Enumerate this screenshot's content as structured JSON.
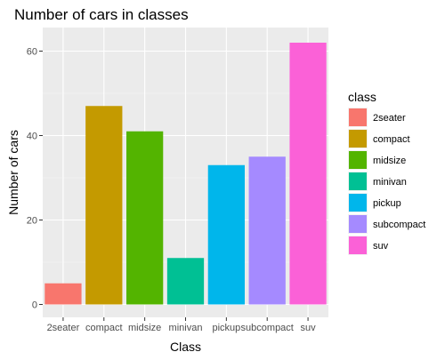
{
  "chart_data": {
    "type": "bar",
    "title": "Number of cars in classes",
    "xlabel": "Class",
    "ylabel": "Number of cars",
    "categories": [
      "2seater",
      "compact",
      "midsize",
      "minivan",
      "pickup",
      "subcompact",
      "suv"
    ],
    "values": [
      5,
      47,
      41,
      11,
      33,
      35,
      62
    ],
    "colors": [
      "#F8766D",
      "#C49A00",
      "#53B400",
      "#00C094",
      "#00B6EB",
      "#A58AFF",
      "#FB61D7"
    ],
    "ylim": [
      0,
      65
    ],
    "yticks": [
      0,
      20,
      40,
      60
    ],
    "grid": true,
    "panel_background": "#EBEBEB",
    "legend": {
      "title": "class",
      "position": "right",
      "entries": [
        "2seater",
        "compact",
        "midsize",
        "minivan",
        "pickup",
        "subcompact",
        "suv"
      ]
    }
  }
}
